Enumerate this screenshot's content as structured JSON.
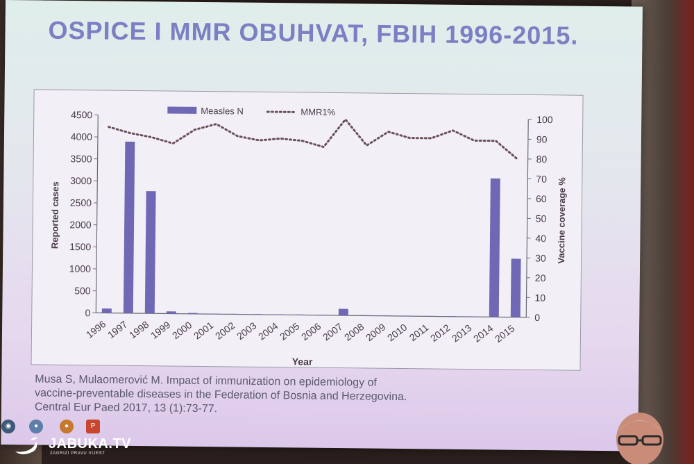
{
  "slide": {
    "title": "OSPICE I MMR OBUHVAT, FBIH 1996-2015.",
    "citation_lines": [
      "Musa S, Mulaomerović M. Impact of immunization on epidemiology of",
      "vaccine-preventable diseases in the Federation of Bosnia and Herzegovina.",
      "Central Eur Paed 2017, 13 (1):73-77."
    ]
  },
  "chart_data": {
    "type": "bar",
    "title": "",
    "xlabel": "Year",
    "ylabel": "Reported cases",
    "y2label": "Vaccine coverage %",
    "categories": [
      "1996",
      "1997",
      "1998",
      "1999",
      "2000",
      "2001",
      "2002",
      "2003",
      "2004",
      "2005",
      "2006",
      "2007",
      "2008",
      "2009",
      "2010",
      "2011",
      "2012",
      "2013",
      "2014",
      "2015"
    ],
    "ylim": [
      0,
      4500
    ],
    "y_ticks": [
      0,
      500,
      1000,
      1500,
      2000,
      2500,
      3000,
      3500,
      4000,
      4500
    ],
    "y2lim": [
      0,
      100
    ],
    "y2_ticks": [
      0,
      10,
      20,
      30,
      40,
      50,
      60,
      70,
      80,
      90,
      100
    ],
    "grid": false,
    "legend_position": "top",
    "series": [
      {
        "name": "Measles N",
        "type": "bar",
        "axis": "left",
        "color": "#6f68b4",
        "values": [
          100,
          3900,
          2780,
          50,
          20,
          10,
          10,
          10,
          10,
          10,
          10,
          150,
          10,
          10,
          10,
          10,
          10,
          10,
          3150,
          1330
        ]
      },
      {
        "name": "MMR1%",
        "type": "line",
        "style": "dotted",
        "axis": "right",
        "color": "#6a4e58",
        "values": [
          94,
          91,
          89,
          86,
          93,
          96,
          90,
          88,
          89,
          88,
          85,
          99,
          86,
          93,
          90,
          90,
          94,
          89,
          89,
          80
        ]
      }
    ]
  },
  "taskbar": {
    "icons": [
      "os-icon",
      "chrome-icon",
      "browser-icon",
      "powerpoint-icon"
    ]
  },
  "watermark": {
    "brand": "JABUKA.TV",
    "tagline": "ZAGRIZI PRAVU VIJEST"
  }
}
